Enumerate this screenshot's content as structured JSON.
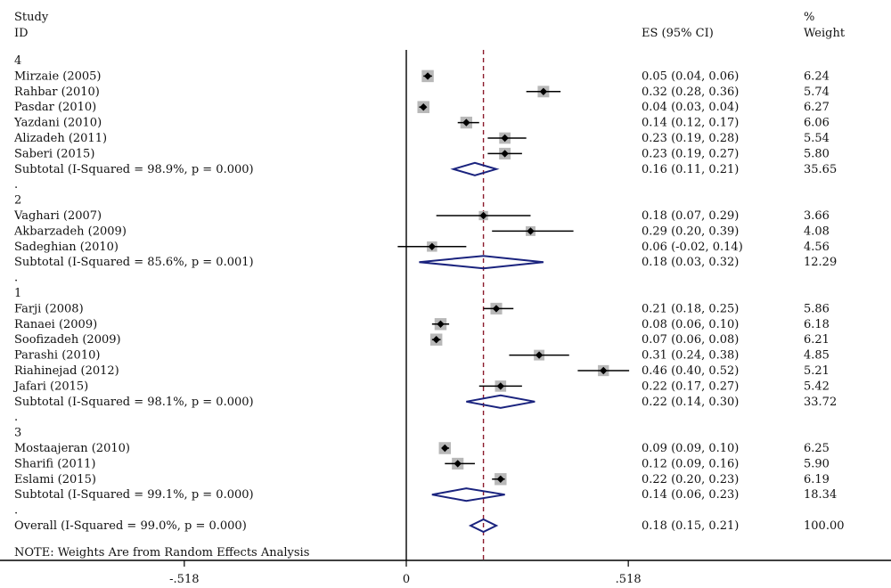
{
  "header": {
    "study_line1": "Study",
    "study_line2": "ID",
    "es_label": "ES (95% CI)",
    "weight_line1": "%",
    "weight_line2": "Weight"
  },
  "note": "NOTE: Weights Are from Random Effects Analysis",
  "chart_data": {
    "type": "forest",
    "null_line": 0,
    "overall_line": 0.18,
    "xlim": [
      -0.95,
      1.12
    ],
    "xticks": [
      {
        "value": -0.518,
        "label": "-.518"
      },
      {
        "value": 0,
        "label": "0"
      },
      {
        "value": 0.518,
        "label": ".518"
      }
    ],
    "rows": [
      {
        "kind": "group",
        "label": "4"
      },
      {
        "kind": "study",
        "label": "Mirzaie (2005)",
        "es": 0.05,
        "lo": 0.04,
        "hi": 0.06,
        "es_text": "0.05 (0.04, 0.06)",
        "weight": 6.24,
        "weight_text": "6.24"
      },
      {
        "kind": "study",
        "label": "Rahbar (2010)",
        "es": 0.32,
        "lo": 0.28,
        "hi": 0.36,
        "es_text": "0.32 (0.28, 0.36)",
        "weight": 5.74,
        "weight_text": "5.74"
      },
      {
        "kind": "study",
        "label": "Pasdar (2010)",
        "es": 0.04,
        "lo": 0.03,
        "hi": 0.04,
        "es_text": "0.04 (0.03, 0.04)",
        "weight": 6.27,
        "weight_text": "6.27"
      },
      {
        "kind": "study",
        "label": "Yazdani (2010)",
        "es": 0.14,
        "lo": 0.12,
        "hi": 0.17,
        "es_text": "0.14 (0.12, 0.17)",
        "weight": 6.06,
        "weight_text": "6.06"
      },
      {
        "kind": "study",
        "label": "Alizadeh (2011)",
        "es": 0.23,
        "lo": 0.19,
        "hi": 0.28,
        "es_text": "0.23 (0.19, 0.28)",
        "weight": 5.54,
        "weight_text": "5.54"
      },
      {
        "kind": "study",
        "label": "Saberi (2015)",
        "es": 0.23,
        "lo": 0.19,
        "hi": 0.27,
        "es_text": "0.23 (0.19, 0.27)",
        "weight": 5.8,
        "weight_text": "5.80"
      },
      {
        "kind": "subtotal",
        "label": "Subtotal  (I-Squared = 98.9%, p = 0.000)",
        "es": 0.16,
        "lo": 0.11,
        "hi": 0.21,
        "es_text": "0.16 (0.11, 0.21)",
        "weight": 35.65,
        "weight_text": "35.65"
      },
      {
        "kind": "spacer",
        "label": "."
      },
      {
        "kind": "group",
        "label": "2"
      },
      {
        "kind": "study",
        "label": "Vaghari (2007)",
        "es": 0.18,
        "lo": 0.07,
        "hi": 0.29,
        "es_text": "0.18 (0.07, 0.29)",
        "weight": 3.66,
        "weight_text": "3.66"
      },
      {
        "kind": "study",
        "label": "Akbarzadeh (2009)",
        "es": 0.29,
        "lo": 0.2,
        "hi": 0.39,
        "es_text": "0.29 (0.20, 0.39)",
        "weight": 4.08,
        "weight_text": "4.08"
      },
      {
        "kind": "study",
        "label": "Sadeghian (2010)",
        "es": 0.06,
        "lo": -0.02,
        "hi": 0.14,
        "es_text": "0.06 (-0.02, 0.14)",
        "weight": 4.56,
        "weight_text": "4.56"
      },
      {
        "kind": "subtotal",
        "label": "Subtotal  (I-Squared = 85.6%, p = 0.001)",
        "es": 0.18,
        "lo": 0.03,
        "hi": 0.32,
        "es_text": "0.18 (0.03, 0.32)",
        "weight": 12.29,
        "weight_text": "12.29"
      },
      {
        "kind": "spacer",
        "label": "."
      },
      {
        "kind": "group",
        "label": "1"
      },
      {
        "kind": "study",
        "label": "Farji (2008)",
        "es": 0.21,
        "lo": 0.18,
        "hi": 0.25,
        "es_text": "0.21 (0.18, 0.25)",
        "weight": 5.86,
        "weight_text": "5.86"
      },
      {
        "kind": "study",
        "label": "Ranaei (2009)",
        "es": 0.08,
        "lo": 0.06,
        "hi": 0.1,
        "es_text": "0.08 (0.06, 0.10)",
        "weight": 6.18,
        "weight_text": "6.18"
      },
      {
        "kind": "study",
        "label": "Soofizadeh (2009)",
        "es": 0.07,
        "lo": 0.06,
        "hi": 0.08,
        "es_text": "0.07 (0.06, 0.08)",
        "weight": 6.21,
        "weight_text": "6.21"
      },
      {
        "kind": "study",
        "label": "Parashi (2010)",
        "es": 0.31,
        "lo": 0.24,
        "hi": 0.38,
        "es_text": "0.31 (0.24, 0.38)",
        "weight": 4.85,
        "weight_text": "4.85"
      },
      {
        "kind": "study",
        "label": "Riahinejad (2012)",
        "es": 0.46,
        "lo": 0.4,
        "hi": 0.52,
        "es_text": "0.46 (0.40, 0.52)",
        "weight": 5.21,
        "weight_text": "5.21"
      },
      {
        "kind": "study",
        "label": "Jafari (2015)",
        "es": 0.22,
        "lo": 0.17,
        "hi": 0.27,
        "es_text": "0.22 (0.17, 0.27)",
        "weight": 5.42,
        "weight_text": "5.42"
      },
      {
        "kind": "subtotal",
        "label": "Subtotal  (I-Squared = 98.1%, p = 0.000)",
        "es": 0.22,
        "lo": 0.14,
        "hi": 0.3,
        "es_text": "0.22 (0.14, 0.30)",
        "weight": 33.72,
        "weight_text": "33.72"
      },
      {
        "kind": "spacer",
        "label": "."
      },
      {
        "kind": "group",
        "label": "3"
      },
      {
        "kind": "study",
        "label": "Mostaajeran (2010)",
        "es": 0.09,
        "lo": 0.09,
        "hi": 0.1,
        "es_text": "0.09 (0.09, 0.10)",
        "weight": 6.25,
        "weight_text": "6.25"
      },
      {
        "kind": "study",
        "label": "Sharifi (2011)",
        "es": 0.12,
        "lo": 0.09,
        "hi": 0.16,
        "es_text": "0.12 (0.09, 0.16)",
        "weight": 5.9,
        "weight_text": "5.90"
      },
      {
        "kind": "study",
        "label": "Eslami (2015)",
        "es": 0.22,
        "lo": 0.2,
        "hi": 0.23,
        "es_text": "0.22 (0.20, 0.23)",
        "weight": 6.19,
        "weight_text": "6.19"
      },
      {
        "kind": "subtotal",
        "label": "Subtotal  (I-Squared = 99.1%, p = 0.000)",
        "es": 0.14,
        "lo": 0.06,
        "hi": 0.23,
        "es_text": "0.14 (0.06, 0.23)",
        "weight": 18.34,
        "weight_text": "18.34"
      },
      {
        "kind": "spacer",
        "label": "."
      },
      {
        "kind": "overall",
        "label": "Overall  (I-Squared = 99.0%, p = 0.000)",
        "es": 0.18,
        "lo": 0.15,
        "hi": 0.21,
        "es_text": "0.18 (0.15, 0.21)",
        "weight": 100.0,
        "weight_text": "100.00"
      }
    ],
    "colors": {
      "marker_box": "#b8b8b8",
      "point": "#000000",
      "ci_line": "#000000",
      "diamond": "#1a237e",
      "null_line": "#000000",
      "overall_line": "#8b1a2b"
    }
  }
}
